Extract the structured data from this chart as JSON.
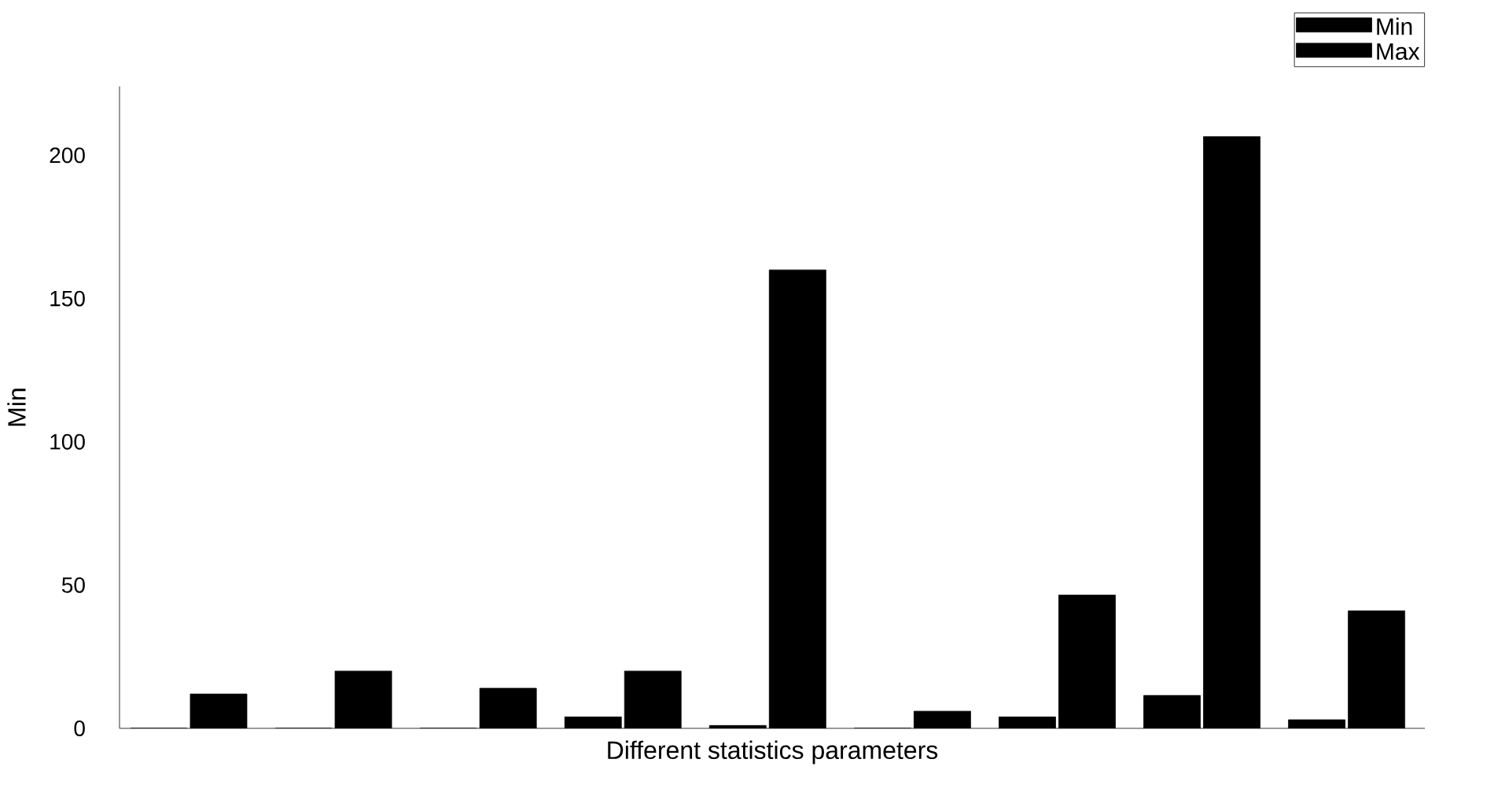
{
  "chart_data": {
    "type": "bar",
    "xlabel": "Different statistics parameters",
    "ylabel": "Min",
    "categories": [
      null,
      null,
      null,
      null,
      null,
      null,
      null,
      null,
      null
    ],
    "series": [
      {
        "name": "Min",
        "color": "#000000",
        "values": [
          0,
          0,
          0,
          4,
          1,
          0,
          4,
          11.5,
          3
        ]
      },
      {
        "name": "Max",
        "color": "#000000",
        "values": [
          12,
          20,
          14,
          20,
          160,
          6,
          46.5,
          206.5,
          41
        ]
      }
    ],
    "ylim": [
      0,
      224
    ],
    "yticks": [
      0,
      50,
      100,
      150,
      200
    ],
    "grid": false,
    "legend": "top right",
    "tick_labels": "y"
  }
}
